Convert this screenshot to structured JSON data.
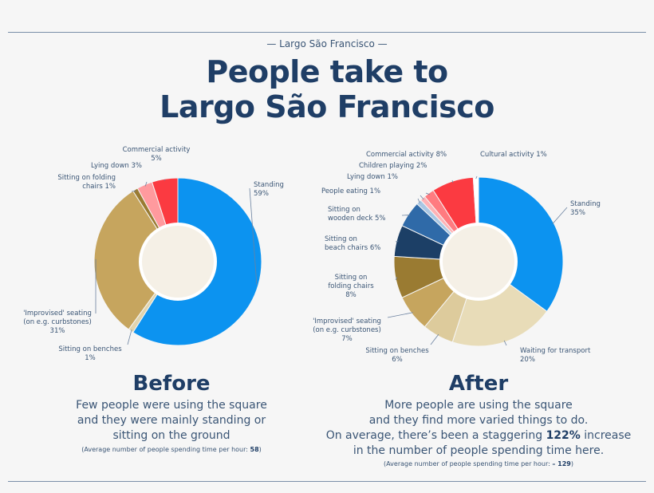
{
  "header": {
    "kicker": "— Largo São Francisco —",
    "title_line1": "People take to",
    "title_line2": "Largo São Francisco"
  },
  "before": {
    "heading": "Before",
    "desc_lines": [
      "Few people were using the square",
      "and they were mainly standing or",
      "sitting on the ground"
    ],
    "avg_label": "(Average number of people spending time per hour: ",
    "avg_value": "58",
    "avg_close": ")"
  },
  "after": {
    "heading": "After",
    "desc_lines": [
      "More people are using the square",
      "and they find more varied things to do."
    ],
    "desc_line3_pre": "On average, there’s been a staggering ",
    "desc_line3_pct": "122%",
    "desc_line3_post": " increase",
    "desc_line4": "in the number of people spending time here.",
    "avg_label": "(Average number of people spending time per hour: ",
    "avg_value": "– 129",
    "avg_close": ")"
  },
  "chart_data": [
    {
      "type": "pie",
      "title": "Before",
      "series": [
        {
          "name": "Standing",
          "value": 59,
          "label_lines": [
            "Standing",
            "59%"
          ],
          "color": "#0c93f0"
        },
        {
          "name": "Sitting on benches",
          "value": 1,
          "label_lines": [
            "Sitting on benches",
            "1%"
          ],
          "color": "#e0d4ae"
        },
        {
          "name": "'Improvised' seating (on e.g. curbstones)",
          "value": 31,
          "label_lines": [
            "'Improvised' seating",
            "(on e.g. curbstones)",
            "31%"
          ],
          "color": "#c6a55e"
        },
        {
          "name": "Sitting on folding chairs",
          "value": 1,
          "label_lines": [
            "Sitting on folding",
            "chairs 1%"
          ],
          "color": "#9a7b32"
        },
        {
          "name": "Lying down",
          "value": 3,
          "label_lines": [
            "Lying down 3%"
          ],
          "color": "#ff9a9e"
        },
        {
          "name": "Commercial activity",
          "value": 5,
          "label_lines": [
            "Commercial activity",
            "5%"
          ],
          "color": "#fb3a41"
        }
      ]
    },
    {
      "type": "pie",
      "title": "After",
      "series": [
        {
          "name": "Standing",
          "value": 35,
          "label_lines": [
            "Standing",
            "35%"
          ],
          "color": "#0c93f0"
        },
        {
          "name": "Waiting for transport",
          "value": 20,
          "label_lines": [
            "Waiting for transport",
            "20%"
          ],
          "color": "#e8dcb8"
        },
        {
          "name": "Sitting on benches",
          "value": 6,
          "label_lines": [
            "Sitting on benches",
            "6%"
          ],
          "color": "#ddcb9c"
        },
        {
          "name": "'Improvised' seating (on e.g. curbstones)",
          "value": 7,
          "label_lines": [
            "'Improvised' seating",
            "(on e.g. curbstones)",
            "7%"
          ],
          "color": "#c6a55e"
        },
        {
          "name": "Sitting on folding chairs",
          "value": 8,
          "label_lines": [
            "Sitting on",
            "folding chairs",
            "8%"
          ],
          "color": "#9a7b32"
        },
        {
          "name": "Sitting on beach chairs",
          "value": 6,
          "label_lines": [
            "Sitting on",
            "beach chairs 6%"
          ],
          "color": "#1c3f66"
        },
        {
          "name": "Sitting on wooden deck",
          "value": 5,
          "label_lines": [
            "Sitting on",
            "wooden deck 5%"
          ],
          "color": "#2f6aa8"
        },
        {
          "name": "People eating",
          "value": 1,
          "label_lines": [
            "People eating 1%"
          ],
          "color": "#a9c7e4"
        },
        {
          "name": "Lying down",
          "value": 1,
          "label_lines": [
            "Lying down 1%"
          ],
          "color": "#ffb2b5"
        },
        {
          "name": "Children playing",
          "value": 2,
          "label_lines": [
            "Children playing 2%"
          ],
          "color": "#ff7b80"
        },
        {
          "name": "Commercial activity",
          "value": 8,
          "label_lines": [
            "Commercial activity 8%"
          ],
          "color": "#fb3a41"
        },
        {
          "name": "Cultural activity",
          "value": 1,
          "label_lines": [
            "Cultural activity 1%"
          ],
          "color": "#ffffff"
        }
      ]
    }
  ]
}
